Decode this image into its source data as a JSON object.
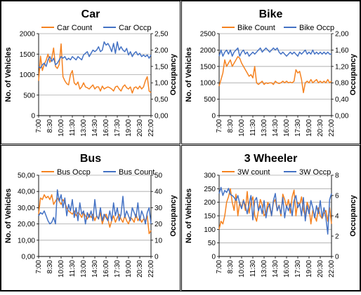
{
  "chart_data": [
    {
      "type": "line",
      "title": "Car",
      "ylabel": "No. of Vehicles",
      "y2label": "Occupancy",
      "xlabel": "",
      "ylim": [
        0,
        2000
      ],
      "ylim2": [
        0,
        2.5
      ],
      "yticks": [
        "0",
        "500",
        "1000",
        "1500",
        "2000"
      ],
      "y2ticks": [
        "0,00",
        "0,50",
        "1,00",
        "1,50",
        "2,00",
        "2,50"
      ],
      "xticks": [
        "7:00",
        "8:30",
        "10:00",
        "11:30",
        "13:00",
        "14:30",
        "16:00",
        "17:30",
        "19:00",
        "20:30",
        "22:00"
      ],
      "legend": "top",
      "grid": true,
      "series": [
        {
          "name": "Car Count",
          "axis": "left",
          "color": "#F58220",
          "values": [
            850,
            1450,
            1100,
            1250,
            1350,
            1500,
            1300,
            1400,
            1650,
            1200,
            1150,
            1250,
            1750,
            950,
            850,
            780,
            750,
            1000,
            1100,
            800,
            750,
            820,
            650,
            700,
            800,
            700,
            680,
            650,
            700,
            750,
            650,
            700,
            700,
            600,
            720,
            650,
            680,
            700,
            680,
            650,
            600,
            700,
            720,
            650,
            600,
            700,
            750,
            680,
            650,
            700,
            550,
            680,
            700,
            650,
            720,
            650,
            700,
            850,
            950,
            600,
            560
          ]
        },
        {
          "name": "Car Occp",
          "axis": "right",
          "color": "#4472C4",
          "values": [
            1.5,
            1.45,
            1.55,
            1.6,
            1.5,
            1.7,
            1.8,
            1.65,
            1.75,
            1.55,
            1.6,
            1.7,
            1.8,
            1.75,
            1.8,
            1.7,
            1.75,
            1.7,
            1.8,
            1.75,
            1.7,
            1.8,
            1.75,
            1.7,
            1.85,
            1.9,
            1.95,
            1.8,
            1.9,
            2.0,
            1.95,
            2.0,
            2.1,
            1.95,
            2.0,
            2.25,
            2.15,
            2.2,
            2.1,
            1.95,
            2.2,
            1.9,
            2.25,
            2.0,
            2.1,
            2.0,
            1.95,
            2.05,
            1.85,
            1.95,
            1.8,
            1.9,
            1.95,
            1.85,
            1.9,
            1.8,
            1.85,
            1.8,
            1.85,
            1.75,
            1.85
          ]
        }
      ]
    },
    {
      "type": "line",
      "title": "Bike",
      "ylabel": "No. of Vehicles",
      "y2label": "Occupancy",
      "xlabel": "",
      "ylim": [
        0,
        2500
      ],
      "ylim2": [
        0,
        2.0
      ],
      "yticks": [
        "0",
        "500",
        "1000",
        "1500",
        "2000",
        "2500"
      ],
      "y2ticks": [
        "0,00",
        "0,40",
        "0,80",
        "1,20",
        "1,60",
        "2,00"
      ],
      "xticks": [
        "7:00",
        "8:30",
        "10:00",
        "11:30",
        "13:00",
        "14:30",
        "16:00",
        "17:30",
        "19:00",
        "20:30",
        "22:00"
      ],
      "legend": "top",
      "grid": true,
      "series": [
        {
          "name": "Bike Count",
          "axis": "left",
          "color": "#F58220",
          "values": [
            900,
            1100,
            1300,
            1700,
            1500,
            1600,
            1700,
            1500,
            1600,
            1700,
            1800,
            1750,
            1600,
            1500,
            1400,
            1300,
            1200,
            1250,
            1150,
            1500,
            1000,
            950,
            1000,
            1050,
            950,
            1000,
            980,
            1000,
            1000,
            950,
            1050,
            1000,
            980,
            1000,
            1050,
            1000,
            1050,
            1000,
            1020,
            1000,
            1050,
            1400,
            1300,
            1350,
            1100,
            700,
            1000,
            1050,
            1000,
            1100,
            1000,
            1050,
            1100,
            1000,
            1050,
            1000,
            1050,
            1000,
            1100,
            1000,
            1050
          ]
        },
        {
          "name": "Bike Occp",
          "axis": "right",
          "color": "#4472C4",
          "values": [
            1.45,
            1.6,
            1.45,
            1.55,
            1.6,
            1.5,
            1.6,
            1.45,
            1.55,
            1.6,
            1.65,
            1.45,
            1.55,
            1.6,
            1.5,
            1.55,
            1.45,
            1.5,
            1.55,
            1.5,
            1.55,
            1.6,
            1.65,
            1.55,
            1.6,
            1.65,
            1.6,
            1.55,
            1.6,
            1.65,
            1.6,
            1.65,
            1.55,
            1.5,
            1.55,
            1.5,
            1.45,
            1.5,
            1.55,
            1.5,
            1.55,
            1.5,
            1.45,
            1.55,
            1.5,
            1.55,
            1.6,
            1.5,
            1.55,
            1.5,
            1.6,
            1.5,
            1.55,
            1.5,
            1.55,
            1.5,
            1.55,
            1.5,
            1.55,
            1.5,
            1.5
          ]
        }
      ]
    },
    {
      "type": "line",
      "title": "Bus",
      "ylabel": "No. of Vehicles",
      "y2label": "Occupancy",
      "xlabel": "",
      "ylim": [
        0,
        50
      ],
      "ylim2": [
        0,
        50
      ],
      "yticks": [
        "0,00",
        "10,00",
        "20,00",
        "30,00",
        "40,00",
        "50,00"
      ],
      "y2ticks": [
        "0",
        "10",
        "20",
        "30",
        "40",
        "50"
      ],
      "xticks": [
        "7:00",
        "8:30",
        "10:00",
        "11:30",
        "13:00",
        "14:30",
        "16:00",
        "17:30",
        "19:00",
        "20:30",
        "22:00"
      ],
      "legend": "top",
      "grid": true,
      "series": [
        {
          "name": "Bus Occp",
          "axis": "left",
          "color": "#F58220",
          "values": [
            26,
            36,
            35,
            38,
            36,
            37,
            35,
            38,
            32,
            34,
            36,
            34,
            32,
            35,
            33,
            30,
            28,
            27,
            26,
            28,
            25,
            27,
            26,
            24,
            27,
            25,
            23,
            26,
            24,
            26,
            22,
            25,
            23,
            27,
            20,
            24,
            26,
            23,
            18,
            22,
            25,
            21,
            24,
            26,
            23,
            21,
            25,
            22,
            20,
            24,
            23,
            21,
            26,
            22,
            24,
            21,
            23,
            22,
            25,
            14,
            16
          ]
        },
        {
          "name": "Bus Count",
          "axis": "right",
          "color": "#4472C4",
          "values": [
            25,
            27,
            26,
            28,
            25,
            22,
            20,
            21,
            24,
            20,
            41,
            34,
            38,
            30,
            36,
            25,
            32,
            28,
            35,
            24,
            30,
            22,
            33,
            26,
            28,
            20,
            27,
            24,
            28,
            22,
            35,
            25,
            23,
            30,
            22,
            26,
            24,
            22,
            28,
            22,
            33,
            25,
            30,
            22,
            26,
            37,
            24,
            28,
            25,
            22,
            30,
            27,
            24,
            33,
            22,
            28,
            25,
            20,
            27,
            30,
            20
          ]
        }
      ]
    },
    {
      "type": "line",
      "title": "3 Wheeler",
      "ylabel": "No. of Vehicles",
      "y2label": "Occupancy",
      "xlabel": "",
      "ylim": [
        0,
        300
      ],
      "ylim2": [
        0,
        8
      ],
      "yticks": [
        "0",
        "50",
        "100",
        "150",
        "200",
        "250",
        "300"
      ],
      "y2ticks": [
        "0",
        "2",
        "4",
        "6",
        "8"
      ],
      "xticks": [
        "7:00",
        "8:30",
        "10:00",
        "11:30",
        "13:00",
        "14:30",
        "16:00",
        "17:30",
        "19:00",
        "20:30",
        "22:00"
      ],
      "legend": "top",
      "grid": true,
      "series": [
        {
          "name": "3W count",
          "axis": "left",
          "color": "#F58220",
          "values": [
            100,
            130,
            120,
            150,
            200,
            220,
            250,
            200,
            170,
            230,
            150,
            200,
            180,
            210,
            170,
            240,
            160,
            200,
            220,
            150,
            130,
            170,
            210,
            190,
            150,
            160,
            200,
            180,
            150,
            200,
            210,
            170,
            190,
            150,
            230,
            210,
            180,
            210,
            160,
            220,
            245,
            150,
            200,
            190,
            220,
            170,
            150,
            200,
            180,
            120,
            170,
            150,
            130,
            180,
            150,
            140,
            160,
            170,
            130,
            180,
            120
          ]
        },
        {
          "name": "3W Occp",
          "axis": "right",
          "color": "#4472C4",
          "values": [
            6.2,
            6.8,
            6.0,
            6.5,
            6.3,
            6.7,
            6.1,
            6.0,
            5.8,
            5.5,
            6.0,
            5.2,
            4.7,
            5.5,
            5.0,
            4.2,
            5.2,
            6.0,
            3.6,
            5.5,
            5.8,
            4.5,
            5.0,
            4.2,
            5.5,
            3.8,
            4.8,
            5.2,
            4.0,
            5.5,
            6.2,
            4.5,
            5.0,
            4.2,
            5.8,
            3.8,
            5.0,
            4.5,
            5.2,
            4.0,
            5.5,
            6.0,
            4.8,
            5.2,
            4.0,
            5.8,
            3.5,
            5.0,
            4.2,
            5.5,
            4.8,
            3.8,
            5.0,
            4.2,
            5.5,
            3.8,
            4.8,
            3.8,
            2.2,
            5.6,
            6.2
          ]
        }
      ]
    }
  ]
}
